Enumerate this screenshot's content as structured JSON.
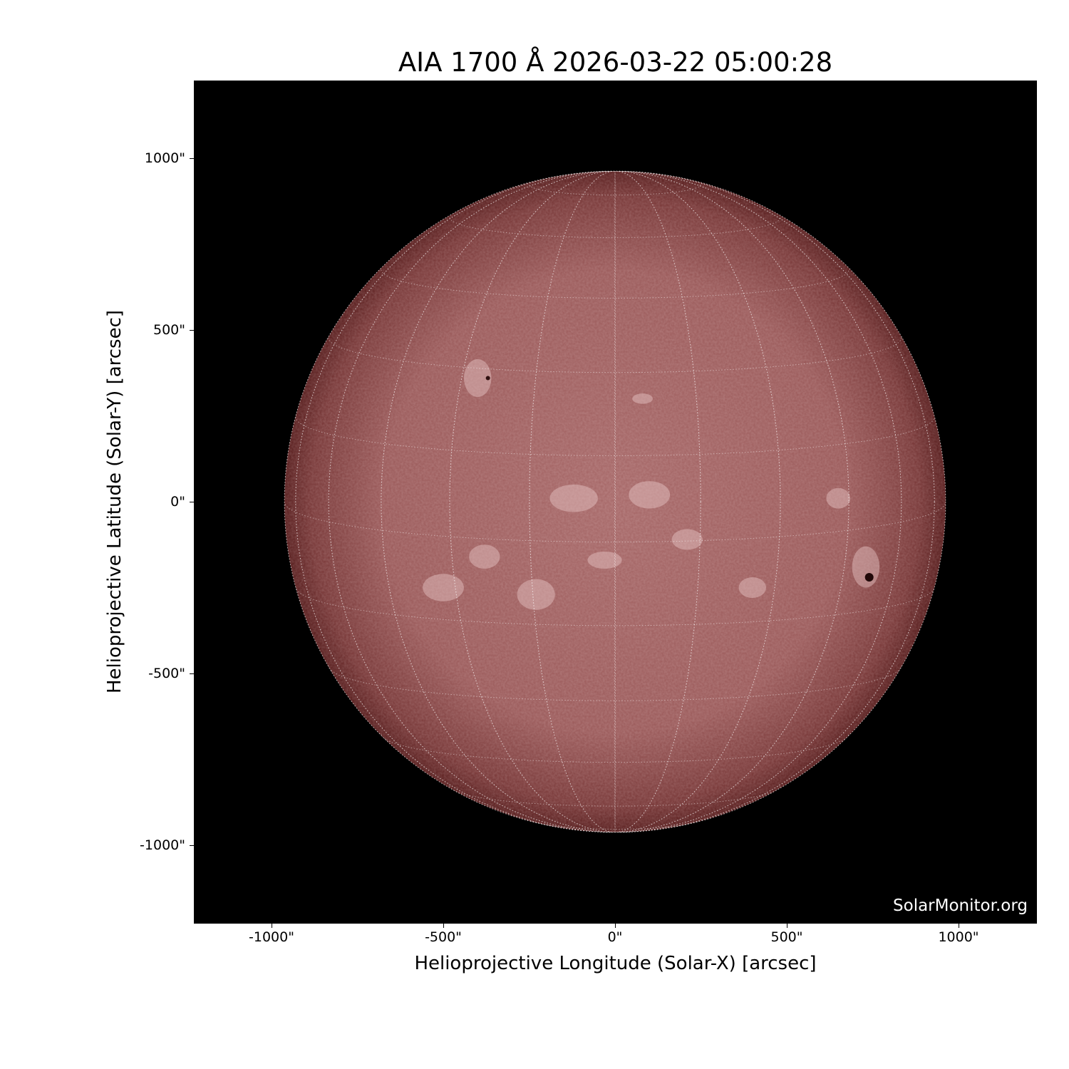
{
  "title": "AIA 1700 Å 2026-03-22 05:00:28",
  "watermark": "SolarMonitor.org",
  "axes": {
    "xlabel": "Helioprojective Longitude (Solar-X) [arcsec]",
    "ylabel": "Helioprojective Latitude (Solar-Y) [arcsec]",
    "xticks": [
      "-1000\"",
      "-500\"",
      "0\"",
      "500\"",
      "1000\""
    ],
    "yticks": [
      "1000\"",
      "500\"",
      "0\"",
      "-500\"",
      "-1000\""
    ],
    "xtick_values": [
      -1000,
      -500,
      0,
      500,
      1000
    ],
    "ytick_values": [
      1000,
      500,
      0,
      -500,
      -1000
    ]
  },
  "colors": {
    "background": "#000000",
    "disk": "#a86a6a",
    "limb": "#5a2020",
    "grid": "#ffffff"
  }
}
